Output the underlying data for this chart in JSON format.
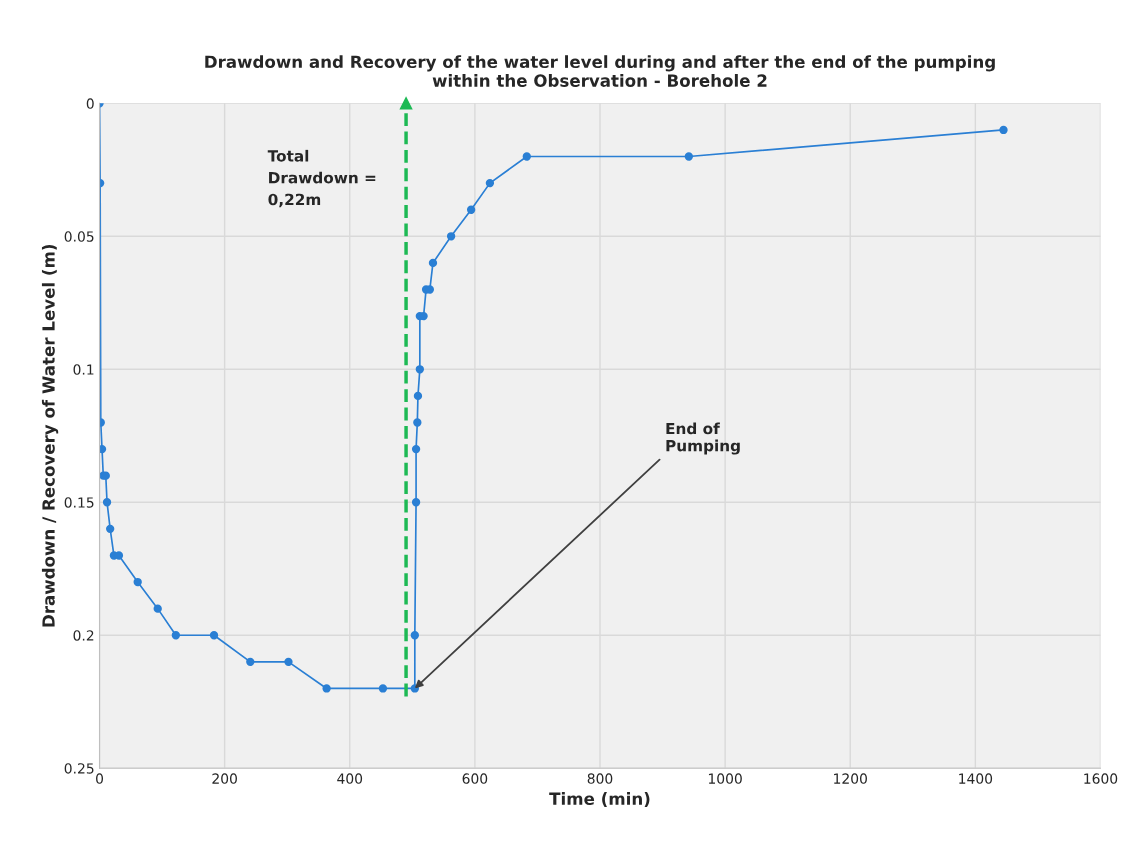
{
  "chart_data": {
    "type": "line",
    "title": "Drawdown and Recovery of the water level during and after the end of the pumping\nwithin the Observation - Borehole 2",
    "xlabel": "Time (min)",
    "ylabel": "Drawdown / Recovery of Water Level (m)",
    "series": [
      {
        "color": "#2a7fd4",
        "x": [
          0,
          1,
          2,
          4,
          6,
          10,
          12,
          17,
          23,
          31,
          61,
          93,
          122,
          183,
          241,
          302,
          363,
          453,
          504,
          504,
          506,
          506,
          508,
          509,
          512,
          512,
          518,
          522,
          528,
          533,
          562,
          594,
          624,
          683,
          942,
          1445
        ],
        "values": [
          0,
          0.03,
          0.12,
          0.13,
          0.14,
          0.14,
          0.15,
          0.16,
          0.17,
          0.17,
          0.18,
          0.19,
          0.2,
          0.2,
          0.21,
          0.21,
          0.22,
          0.22,
          0.22,
          0.2,
          0.15,
          0.13,
          0.12,
          0.11,
          0.1,
          0.08,
          0.08,
          0.07,
          0.07,
          0.06,
          0.05,
          0.04,
          0.03,
          0.02,
          0.02,
          0.01
        ]
      }
    ],
    "xlim": [
      0,
      1600
    ],
    "xticks": [
      0,
      200,
      400,
      600,
      800,
      1000,
      1200,
      1400,
      1600
    ],
    "ylim": [
      0.25,
      0
    ],
    "yticks": [
      0,
      0.05,
      0.1,
      0.15,
      0.2,
      0.25
    ],
    "grid": true,
    "marker": "circle",
    "line_style": "solid",
    "legend": false,
    "ref_lines": [
      {
        "axis": "x",
        "value": 490,
        "color": "#1db954",
        "line_style": "dashed"
      }
    ],
    "annotations": [
      "Total\nDrawdown =\n0,22m",
      {
        "text": "End of\nPumping",
        "x": 504,
        "y": 0.22
      }
    ]
  }
}
